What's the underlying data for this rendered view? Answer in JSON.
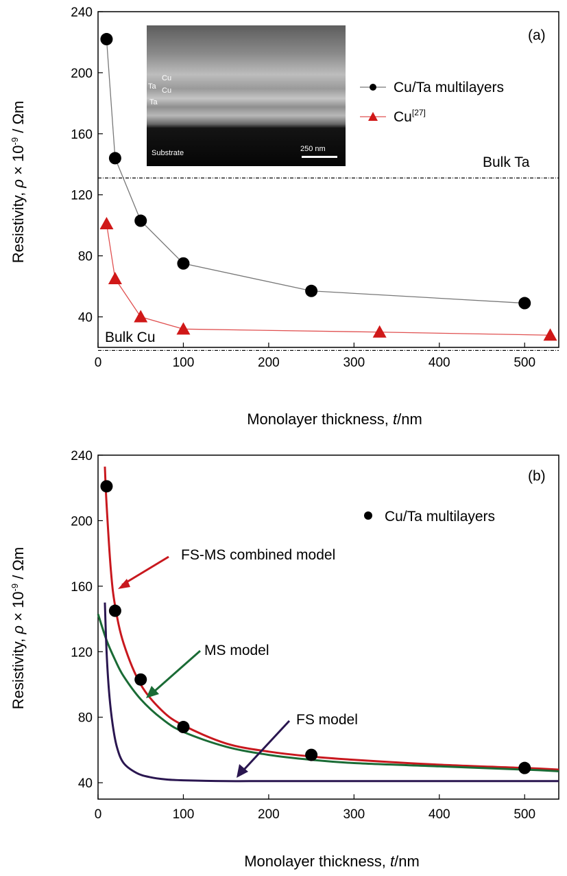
{
  "chart_data": [
    {
      "panel_label": "(a)",
      "type": "line",
      "xlabel_text": "Monolayer thickness, ",
      "xlabel_italic": "t",
      "xlabel_unit": "/nm",
      "ylabel_text": "Resistivity, ",
      "ylabel_symbol": "ρ",
      "ylabel_unit": " × 10",
      "ylabel_exp": "-9",
      "ylabel_tail": " / Ωm",
      "xlim": [
        0,
        540
      ],
      "ylim": [
        20,
        240
      ],
      "x_ticks": [
        "0",
        "100",
        "200",
        "300",
        "400",
        "500"
      ],
      "y_ticks": [
        "40",
        "80",
        "120",
        "160",
        "200",
        "240"
      ],
      "series": [
        {
          "name": "Cu/Ta multilayers",
          "marker": "circle",
          "color": "#000000",
          "line_color": "#777777",
          "x": [
            10,
            20,
            50,
            100,
            250,
            500
          ],
          "y": [
            222,
            144,
            103,
            75,
            57,
            49
          ]
        },
        {
          "name": "Cu",
          "name_sup": "[27]",
          "marker": "triangle",
          "color": "#d01818",
          "line_color": "#e05050",
          "x": [
            10,
            20,
            50,
            100,
            330,
            530
          ],
          "y": [
            101,
            65,
            40,
            32,
            30,
            28
          ]
        }
      ],
      "reference_lines": [
        {
          "label": "Bulk Ta",
          "y": 131
        },
        {
          "label": "Bulk Cu",
          "y": 18
        }
      ],
      "inset": {
        "labels": [
          "Cu",
          "Ta",
          "Cu",
          "Ta",
          "Substrate"
        ],
        "scalebar": "250 nm"
      },
      "legend_placement": "top-right",
      "grid": false
    },
    {
      "panel_label": "(b)",
      "type": "line",
      "xlabel_text": "Monolayer thickness, ",
      "xlabel_italic": "t",
      "xlabel_unit": "/nm",
      "ylabel_text": "Resistivity, ",
      "ylabel_symbol": "ρ",
      "ylabel_unit": " × 10",
      "ylabel_exp": "-9",
      "ylabel_tail": " / Ωm",
      "xlim": [
        0,
        540
      ],
      "ylim": [
        30,
        240
      ],
      "x_ticks": [
        "0",
        "100",
        "200",
        "300",
        "400",
        "500"
      ],
      "y_ticks": [
        "40",
        "80",
        "120",
        "160",
        "200",
        "240"
      ],
      "series": [
        {
          "name": "Cu/Ta multilayers",
          "marker": "circle",
          "color": "#000000",
          "x": [
            10,
            20,
            50,
            100,
            250,
            500
          ],
          "y": [
            221,
            145,
            103,
            74,
            57,
            49
          ]
        },
        {
          "name": "FS-MS combined model",
          "marker": "none",
          "color": "#c8181e",
          "x": [
            8,
            10,
            15,
            20,
            30,
            50,
            75,
            100,
            150,
            200,
            250,
            300,
            400,
            500,
            540
          ],
          "y": [
            233,
            210,
            170,
            148,
            125,
            100,
            84,
            75,
            64,
            59,
            56,
            54,
            51,
            49,
            48
          ]
        },
        {
          "name": "MS model",
          "marker": "none",
          "color": "#1a6b35",
          "x": [
            0,
            10,
            20,
            30,
            50,
            75,
            100,
            150,
            200,
            250,
            300,
            400,
            500,
            540
          ],
          "y": [
            143,
            127,
            115,
            105,
            91,
            79,
            71,
            62,
            57,
            54,
            52,
            50,
            48,
            47
          ]
        },
        {
          "name": "FS model",
          "marker": "none",
          "color": "#2a1650",
          "x": [
            8,
            10,
            13,
            17,
            22,
            30,
            45,
            60,
            80,
            100,
            150,
            200,
            300,
            400,
            540
          ],
          "y": [
            150,
            120,
            95,
            76,
            62,
            52,
            46,
            43.5,
            42,
            41.5,
            41,
            41,
            41,
            41,
            41
          ]
        }
      ],
      "annotations": [
        "FS-MS combined model",
        "MS model",
        "FS model"
      ],
      "legend_placement": "top-right",
      "grid": false
    }
  ]
}
